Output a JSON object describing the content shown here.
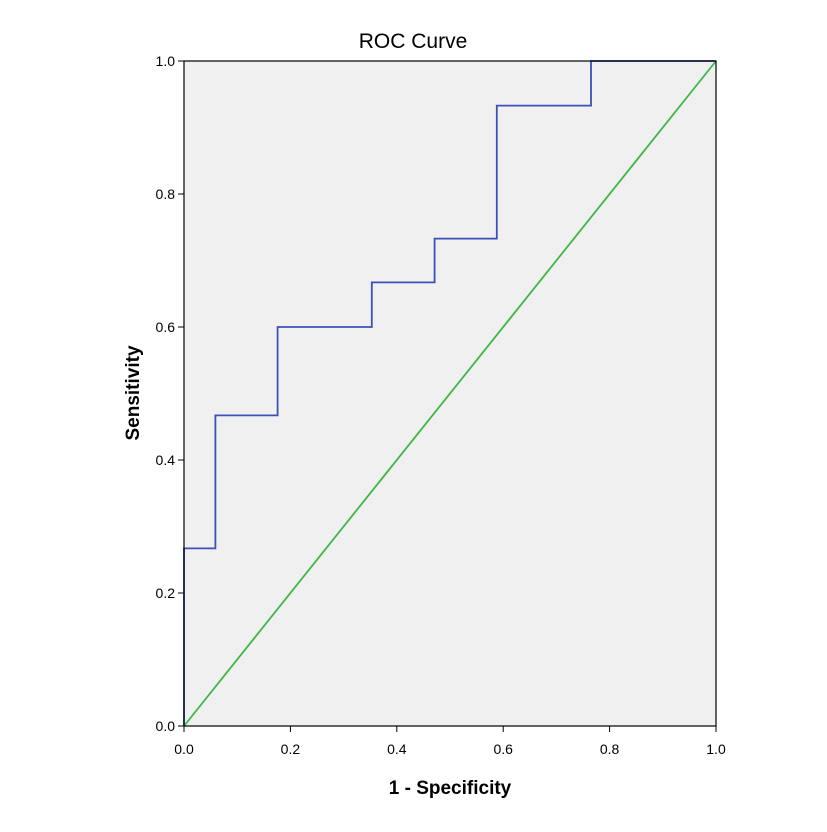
{
  "chart_data": {
    "type": "line",
    "title": "ROC Curve",
    "xlabel": "1 - Specificity",
    "ylabel": "Sensitivity",
    "xlim": [
      0,
      1
    ],
    "ylim": [
      0,
      1
    ],
    "x_ticks": [
      "0.0",
      "0.2",
      "0.4",
      "0.6",
      "0.8",
      "1.0"
    ],
    "y_ticks": [
      "0.0",
      "0.2",
      "0.4",
      "0.6",
      "0.8",
      "1.0"
    ],
    "grid": false,
    "legend": "none",
    "series": [
      {
        "step": true,
        "color": "#3d4fb8",
        "points": [
          [
            0.0,
            0.0
          ],
          [
            0.0,
            0.267
          ],
          [
            0.059,
            0.267
          ],
          [
            0.059,
            0.467
          ],
          [
            0.176,
            0.467
          ],
          [
            0.176,
            0.6
          ],
          [
            0.353,
            0.6
          ],
          [
            0.353,
            0.667
          ],
          [
            0.471,
            0.667
          ],
          [
            0.471,
            0.733
          ],
          [
            0.588,
            0.733
          ],
          [
            0.588,
            0.933
          ],
          [
            0.765,
            0.933
          ],
          [
            0.765,
            1.0
          ],
          [
            1.0,
            1.0
          ]
        ]
      },
      {
        "reference": true,
        "color": "#3cb84a",
        "points": [
          [
            0.0,
            0.0
          ],
          [
            1.0,
            1.0
          ]
        ]
      }
    ],
    "plot_background": "#f0f0f0"
  }
}
